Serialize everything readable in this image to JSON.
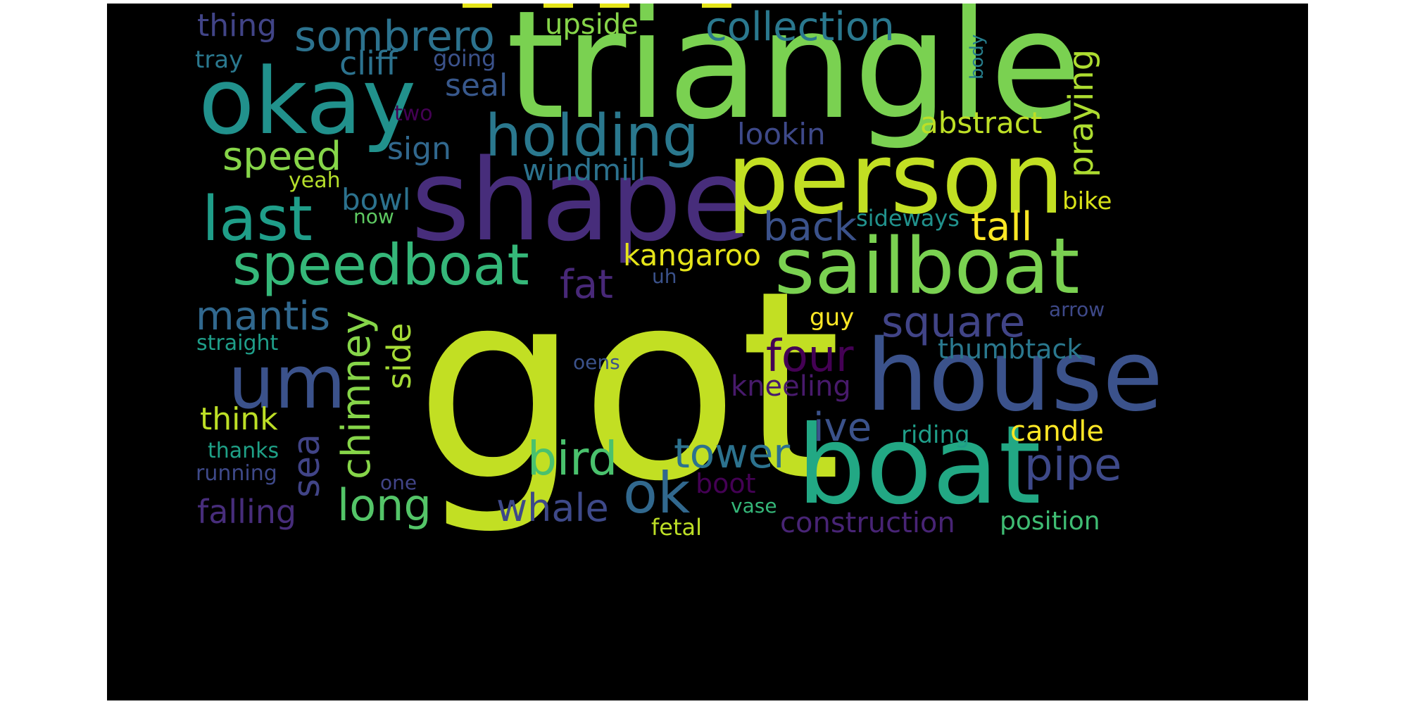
{
  "words": {
    "got": "got",
    "triangle": "triangle",
    "shape": "shape",
    "person": "person",
    "house": "house",
    "boat": "boat",
    "okay": "okay",
    "sailboat": "sailboat",
    "speedboat": "speedboat",
    "holding": "holding",
    "last": "last",
    "um": "um",
    "sombrero": "sombrero",
    "collection": "collection",
    "speed": "speed",
    "square": "square",
    "chimney": "chimney",
    "ok": "ok",
    "bird": "bird",
    "long": "long",
    "tower": "tower",
    "pipe": "pipe",
    "mantis": "mantis",
    "fat": "fat",
    "back": "back",
    "four": "four",
    "ive": "ive",
    "whale": "whale",
    "sea": "sea",
    "side": "side",
    "praying": "praying",
    "tall": "tall",
    "kangaroo": "kangaroo",
    "falling": "falling",
    "construction": "construction",
    "abstract": "abstract",
    "windmill": "windmill",
    "thing": "thing",
    "upside": "upside",
    "cliff": "cliff",
    "seal": "seal",
    "sign": "sign",
    "lookin": "lookin",
    "bowl": "bowl",
    "kneeling": "kneeling",
    "thumbtack": "thumbtack",
    "candle": "candle",
    "think": "think",
    "riding": "riding",
    "position": "position",
    "boot": "boot",
    "tray": "tray",
    "going": "going",
    "two": "two",
    "yeah": "yeah",
    "now": "now",
    "sideways": "sideways",
    "bike": "bike",
    "uh": "uh",
    "guy": "guy",
    "arrow": "arrow",
    "straight": "straight",
    "oens": "oens",
    "thanks": "thanks",
    "running": "running",
    "one": "one",
    "vase": "vase",
    "fetal": "fetal",
    "body": "body"
  },
  "colors": {
    "got": "#c2df23",
    "triangle": "#7ad151",
    "shape": "#472d7b",
    "person": "#c2df23",
    "house": "#3b528b",
    "boat": "#22a884",
    "okay": "#21918c",
    "sailboat": "#7ad151",
    "speedboat": "#35b779",
    "holding": "#2a788e",
    "last": "#1f9e89",
    "um": "#3b528b",
    "sombrero": "#2c728e",
    "collection": "#2a788e",
    "speed": "#86d549",
    "square": "#414487",
    "chimney": "#86d549",
    "ok": "#31688e",
    "bird": "#4ac16d",
    "long": "#54c568",
    "tower": "#2c728e",
    "pipe": "#3e4989",
    "mantis": "#31688e",
    "fat": "#482878",
    "back": "#3b528b",
    "four": "#440154",
    "ive": "#3b528b",
    "whale": "#3e4989",
    "sea": "#414487",
    "side": "#a5db36",
    "praying": "#addc30",
    "tall": "#fde725",
    "kangaroo": "#e5e419",
    "falling": "#472d7b",
    "construction": "#482475",
    "abstract": "#bddf26",
    "windmill": "#2c728e",
    "thing": "#414487",
    "upside": "#86d549",
    "cliff": "#2c728e",
    "seal": "#38588c",
    "sign": "#31688e",
    "lookin": "#3e4989",
    "bowl": "#2c728e",
    "kneeling": "#481a6c",
    "thumbtack": "#2a788e",
    "candle": "#fde725",
    "think": "#bddf26",
    "riding": "#1f9e89",
    "position": "#3fbc73",
    "boot": "#440154",
    "tray": "#2a788e",
    "going": "#3b528b",
    "two": "#440154",
    "yeah": "#b5de2b",
    "now": "#5ec962",
    "sideways": "#21918c",
    "bike": "#d8e219",
    "uh": "#3b528b",
    "guy": "#fde725",
    "arrow": "#3e4989",
    "straight": "#1f9e89",
    "oens": "#3b528b",
    "thanks": "#1fa187",
    "running": "#3e4989",
    "one": "#414487",
    "vase": "#35b779",
    "fetal": "#bddf26",
    "body": "#277f8e"
  }
}
